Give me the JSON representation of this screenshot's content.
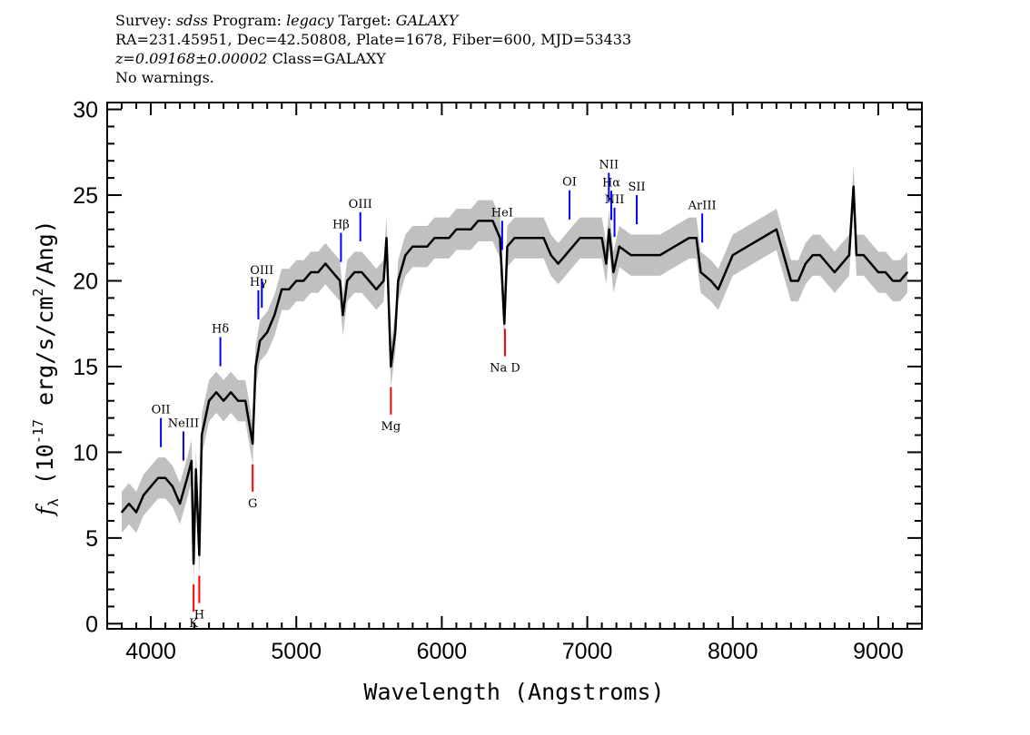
{
  "header": {
    "line1": {
      "survey_label": "Survey:",
      "survey": "sdss",
      "program_label": "Program:",
      "program": "legacy",
      "target_label": "Target:",
      "target": "GALAXY"
    },
    "line2": "RA=231.45951, Dec=42.50808, Plate=1678, Fiber=600, MJD=53433",
    "line3": {
      "redshift": "z=0.09168±0.00002",
      "class": "Class=GALAXY"
    },
    "line4": "No warnings."
  },
  "chart_data": {
    "type": "line",
    "xlabel": "Wavelength (Angstroms)",
    "ylabel": {
      "prefix": "f",
      "sub": "λ",
      "unit_a": " (10",
      "exp": "-17",
      "unit_b": " erg/s/cm",
      "exp2": "2",
      "unit_c": "/Ang)"
    },
    "xlim": [
      3700,
      9300
    ],
    "ylim": [
      -0.3,
      30.4
    ],
    "x_ticks": [
      4000,
      5000,
      6000,
      7000,
      8000,
      9000
    ],
    "y_ticks": [
      0,
      5,
      10,
      15,
      20,
      25,
      30
    ],
    "x_minor_step": 100,
    "y_minor_step": 1,
    "grid": false,
    "colors": {
      "flux": "#000000",
      "error": "#c0c0c0",
      "emission": "#0000ff",
      "absorption": "#ff0000"
    },
    "flux_error_approx": 1.2,
    "series": [
      {
        "x": [
          3800,
          3850,
          3900,
          3950,
          4000,
          4050,
          4100,
          4150,
          4200,
          4250,
          4280,
          4294,
          4310,
          4333,
          4350,
          4400,
          4450,
          4500,
          4550,
          4600,
          4650,
          4700,
          4720,
          4750,
          4800,
          4850,
          4900,
          4950,
          5000,
          5050,
          5100,
          5150,
          5200,
          5250,
          5300,
          5320,
          5350,
          5400,
          5450,
          5500,
          5550,
          5600,
          5620,
          5650,
          5680,
          5700,
          5750,
          5800,
          5850,
          5900,
          5950,
          6000,
          6050,
          6100,
          6150,
          6200,
          6250,
          6300,
          6350,
          6400,
          6430,
          6450,
          6500,
          6550,
          6600,
          6650,
          6700,
          6750,
          6800,
          6850,
          6900,
          6950,
          7000,
          7050,
          7100,
          7130,
          7150,
          7180,
          7220,
          7300,
          7400,
          7500,
          7600,
          7700,
          7750,
          7780,
          7850,
          7900,
          7950,
          8000,
          8100,
          8200,
          8300,
          8350,
          8400,
          8450,
          8500,
          8550,
          8600,
          8700,
          8800,
          8830,
          8850,
          8900,
          8950,
          9000,
          9050,
          9100,
          9150,
          9200
        ],
        "y": [
          6.5,
          7,
          6.5,
          7.5,
          8,
          8.5,
          8.5,
          8,
          7,
          8.5,
          9.5,
          3.5,
          9,
          4,
          11,
          13,
          13.5,
          13,
          13.5,
          13,
          13,
          10.5,
          15,
          16.5,
          17,
          18,
          19.5,
          19.5,
          20,
          20,
          20.5,
          20.5,
          21,
          20.5,
          20,
          18,
          20,
          20.5,
          20.5,
          20,
          19.5,
          20,
          22.5,
          15,
          17,
          20,
          21.5,
          22,
          22,
          22,
          22.5,
          22.5,
          22.5,
          23,
          23,
          23,
          23.5,
          23.5,
          23.5,
          22.5,
          17.5,
          22,
          22.5,
          22.5,
          22.5,
          22.5,
          22.5,
          21.5,
          21,
          21.5,
          22,
          22.5,
          22.5,
          22.5,
          22.5,
          21,
          23,
          20.5,
          22,
          21.5,
          21.5,
          21.5,
          22,
          22.5,
          22.5,
          20.5,
          20,
          19.5,
          20.5,
          21.5,
          22,
          22.5,
          23,
          21.5,
          20,
          20,
          21,
          21.5,
          21.5,
          20.5,
          21.5,
          25.5,
          21.5,
          21.5,
          21,
          20.5,
          20.5,
          20,
          20,
          20.5
        ]
      }
    ],
    "emission_lines": [
      {
        "label": "OII",
        "wavelength": 4069
      },
      {
        "label": "NeIII",
        "wavelength": 4224
      },
      {
        "label": "Hδ",
        "wavelength": 4478
      },
      {
        "label": "Hγ",
        "wavelength": 4739
      },
      {
        "label": "OIII",
        "wavelength": 4763
      },
      {
        "label": "Hβ",
        "wavelength": 5307
      },
      {
        "label": "OIII",
        "wavelength": 5440
      },
      {
        "label": "HeI",
        "wavelength": 6415
      },
      {
        "label": "OI",
        "wavelength": 6878
      },
      {
        "label": "NII",
        "wavelength": 7148
      },
      {
        "label": "Hα",
        "wavelength": 7165
      },
      {
        "label": "NII",
        "wavelength": 7187
      },
      {
        "label": "SII",
        "wavelength": 7340
      },
      {
        "label": "ArIII",
        "wavelength": 7790
      }
    ],
    "absorption_lines": [
      {
        "label": "K",
        "wavelength": 4294
      },
      {
        "label": "H",
        "wavelength": 4333
      },
      {
        "label": "G",
        "wavelength": 4700
      },
      {
        "label": "Mg",
        "wavelength": 5650
      },
      {
        "label": "Na D",
        "wavelength": 6434
      }
    ]
  }
}
